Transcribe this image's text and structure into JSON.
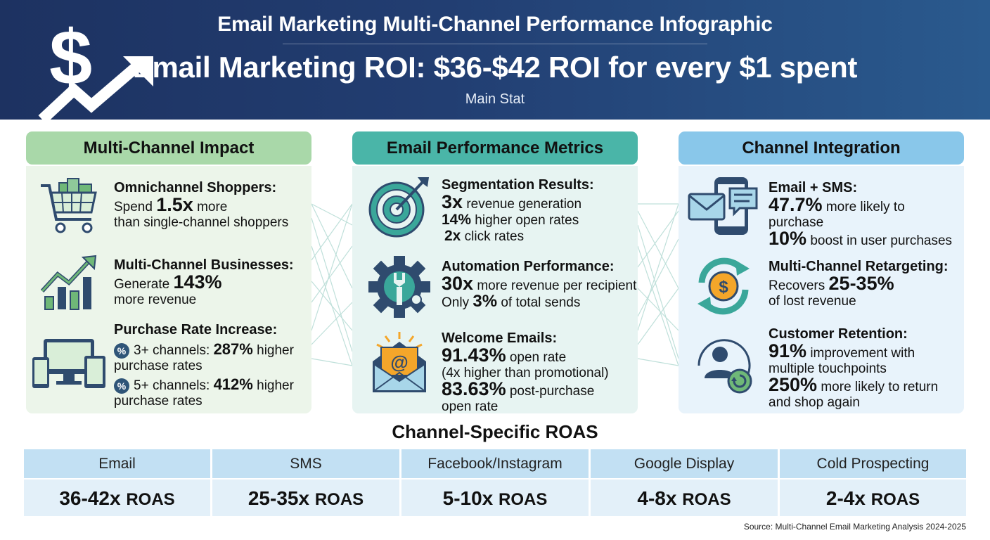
{
  "header": {
    "subtitle": "Email Marketing Multi-Channel Performance Infographic",
    "main_stat": "Email Marketing ROI: $36-$42 ROI for every $1 spent",
    "caption": "Main Stat"
  },
  "panels": {
    "multi_channel": {
      "title": "Multi-Channel Impact",
      "omni": {
        "heading": "Omnichannel Shoppers:",
        "pre": "Spend ",
        "value": "1.5x",
        "post": " more",
        "line2": "than single-channel shoppers"
      },
      "business": {
        "heading": "Multi-Channel Businesses:",
        "pre": "Generate ",
        "value": "143%",
        "line2": "more revenue"
      },
      "purchase": {
        "heading": "Purchase Rate Increase:",
        "badge": "%",
        "row1": {
          "pre": "3+ channels: ",
          "value": "287%",
          "post": " higher",
          "line2": "purchase rates"
        },
        "row2": {
          "pre": "5+ channels: ",
          "value": "412%",
          "post": " higher",
          "line2": "purchase rates"
        }
      }
    },
    "email_metrics": {
      "title": "Email Performance Metrics",
      "segmentation": {
        "heading": "Segmentation Results:",
        "r1": {
          "value": "3x",
          "text": " revenue generation"
        },
        "r2": {
          "value": "14%",
          "text": " higher open rates"
        },
        "r3": {
          "value": "2x",
          "text": " click rates"
        }
      },
      "automation": {
        "heading": "Automation Performance:",
        "r1": {
          "value": "30x",
          "text": " more revenue per recipient"
        },
        "r2": {
          "pre": "Only ",
          "value": "3%",
          "text": " of total sends"
        }
      },
      "welcome": {
        "heading": "Welcome Emails:",
        "r1": {
          "value": "91.43%",
          "text": " open rate"
        },
        "r1b": "(4x higher than promotional)",
        "r2": {
          "value": "83.63%",
          "text": " post-purchase"
        },
        "r2b": "open rate",
        "icon_glyph": "@"
      }
    },
    "integration": {
      "title": "Channel Integration",
      "sms": {
        "heading": "Email + SMS:",
        "r1": {
          "value": "47.7%",
          "text": " more likely to purchase"
        },
        "r2": {
          "value": "10%",
          "text": " boost in user purchases"
        }
      },
      "retargeting": {
        "heading": "Multi-Channel Retargeting:",
        "pre": "Recovers ",
        "value": "25-35%",
        "line2": "of lost revenue",
        "icon_glyph": "$"
      },
      "retention": {
        "heading": "Customer Retention:",
        "r1": {
          "value": "91%",
          "text": " improvement with"
        },
        "r1b": "multiple touchpoints",
        "r2": {
          "value": "250%",
          "text": " more likely to return"
        },
        "r2b": "and shop again"
      }
    }
  },
  "roas": {
    "title": "Channel-Specific ROAS",
    "unit": "ROAS",
    "channels": [
      {
        "name": "Email",
        "value": "36-42x"
      },
      {
        "name": "SMS",
        "value": "25-35x"
      },
      {
        "name": "Facebook/Instagram",
        "value": "5-10x"
      },
      {
        "name": "Google Display",
        "value": "4-8x"
      },
      {
        "name": "Cold Prospecting",
        "value": "2-4x"
      }
    ]
  },
  "source": "Source: Multi-Channel Email Marketing Analysis 2024-2025",
  "colors": {
    "header_dark": "#1d3261",
    "green_head": "#a9d8a9",
    "teal_head": "#4ab5a8",
    "blue_head": "#89c7ea",
    "icon_navy": "#2f4b6e",
    "icon_green": "#6fb878",
    "icon_teal": "#3aa79a"
  }
}
